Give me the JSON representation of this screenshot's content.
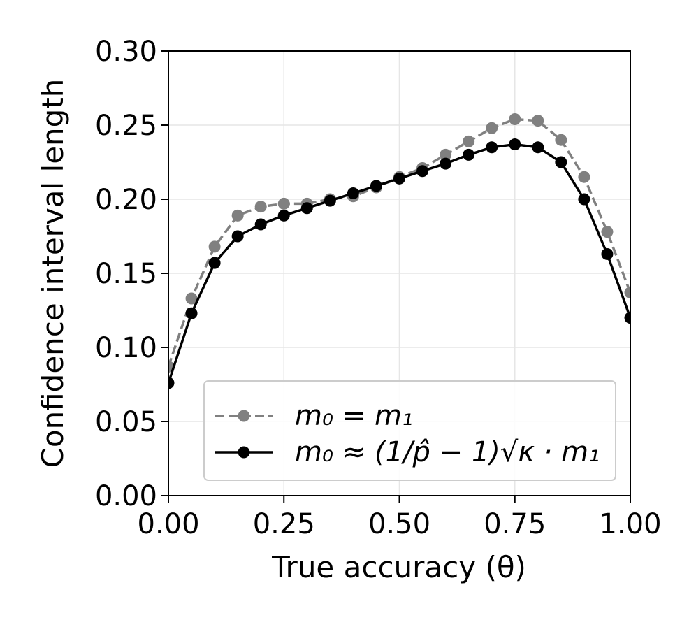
{
  "chart_data": {
    "type": "line",
    "xlabel": "True accuracy (θ)",
    "ylabel": "Confidence interval length",
    "xlim": [
      0,
      1
    ],
    "ylim": [
      0,
      0.3
    ],
    "xticks": [
      "0.00",
      "0.25",
      "0.50",
      "0.75",
      "1.00"
    ],
    "yticks": [
      "0.00",
      "0.05",
      "0.10",
      "0.15",
      "0.20",
      "0.25",
      "0.30"
    ],
    "grid": true,
    "legend_position": "bottom-right",
    "x": [
      0,
      0.05,
      0.1,
      0.15,
      0.2,
      0.25,
      0.3,
      0.35,
      0.4,
      0.45,
      0.5,
      0.55,
      0.6,
      0.65,
      0.7,
      0.75,
      0.8,
      0.85,
      0.9,
      0.95,
      1.0
    ],
    "series": [
      {
        "name": "m₀ = m₁",
        "style": "dashed",
        "color": "#808080",
        "values": [
          0.087,
          0.133,
          0.168,
          0.189,
          0.195,
          0.197,
          0.197,
          0.2,
          0.202,
          0.208,
          0.215,
          0.221,
          0.23,
          0.239,
          0.248,
          0.254,
          0.253,
          0.24,
          0.215,
          0.178,
          0.137
        ]
      },
      {
        "name": "m₀ ≈ (1/p̂ − 1)√κ · m₁",
        "style": "solid",
        "color": "#000000",
        "values": [
          0.076,
          0.123,
          0.157,
          0.175,
          0.183,
          0.189,
          0.194,
          0.199,
          0.204,
          0.209,
          0.214,
          0.219,
          0.224,
          0.23,
          0.235,
          0.237,
          0.235,
          0.225,
          0.2,
          0.163,
          0.12
        ]
      }
    ]
  }
}
